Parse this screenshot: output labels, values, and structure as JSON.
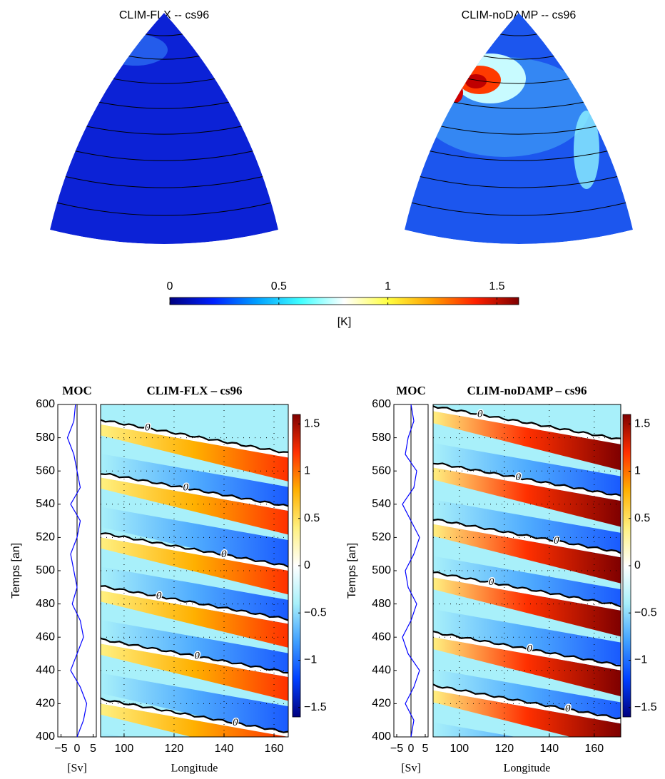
{
  "chart_data": [
    {
      "type": "map",
      "title": "CLIM-FLX  --  cs96"
    },
    {
      "type": "map",
      "title": "CLIM-noDAMP  --  cs96"
    },
    {
      "type": "colorbar",
      "label": "[K]",
      "lim": [
        0,
        1.6
      ],
      "ticks": [
        0,
        0.5,
        1,
        1.5
      ],
      "colormap": [
        "#00007f",
        "#0020ff",
        "#00a0ff",
        "#40ffff",
        "#ffffff",
        "#ffff40",
        "#ffa000",
        "#ff2000",
        "#7f0000"
      ]
    },
    {
      "type": "line",
      "title": "MOC",
      "xlabel": "[Sv]",
      "ylabel": "Temps [an]",
      "xlim": [
        -6,
        6
      ],
      "xticks": [
        {
          "value": -5,
          "label": "−5"
        },
        0,
        5
      ],
      "ylim": [
        400,
        600
      ],
      "yticks": [
        400,
        420,
        440,
        460,
        480,
        500,
        520,
        540,
        560,
        580,
        600
      ],
      "y": [
        400,
        410,
        420,
        430,
        440,
        450,
        460,
        470,
        480,
        490,
        500,
        510,
        520,
        530,
        540,
        550,
        560,
        570,
        580,
        590,
        600
      ],
      "values": [
        0,
        2,
        3,
        1,
        -2,
        0,
        2,
        1,
        -1.5,
        0,
        -1,
        -2,
        0,
        1,
        -2,
        1,
        0,
        -1,
        -3,
        -1,
        -0.5
      ],
      "color": "#0000ff",
      "zero_line": true
    },
    {
      "type": "heatmap",
      "title": "CLIM-FLX – cs96",
      "xlabel": "Longitude",
      "xlim": [
        90.6,
        165.7
      ],
      "xticks": [
        100,
        120,
        140,
        160
      ],
      "ylim": [
        400,
        600
      ],
      "yticks": [
        400,
        420,
        440,
        460,
        480,
        500,
        520,
        540,
        560,
        580,
        600
      ],
      "grid": true,
      "contour_label": "0",
      "colorbar": {
        "lim": [
          -1.6,
          1.6
        ],
        "ticks": [
          {
            "value": -1.5,
            "label": "−1.5"
          },
          {
            "value": -1,
            "label": "−1"
          },
          {
            "value": -0.5,
            "label": "−0.5"
          },
          0,
          0.5,
          1,
          1.5
        ],
        "colormap": [
          "#00007f",
          "#0040ff",
          "#40a0ff",
          "#a8f0fa",
          "#ffffff",
          "#fff080",
          "#ffb000",
          "#ff3000",
          "#7f0000"
        ]
      }
    },
    {
      "type": "line",
      "title": "MOC",
      "xlabel": "[Sv]",
      "ylabel": "Temps [an]",
      "xlim": [
        -6,
        6
      ],
      "xticks": [
        {
          "value": -5,
          "label": "−5"
        },
        0,
        5
      ],
      "ylim": [
        400,
        600
      ],
      "yticks": [
        400,
        420,
        440,
        460,
        480,
        500,
        520,
        540,
        560,
        580,
        600
      ],
      "y": [
        400,
        410,
        420,
        430,
        440,
        450,
        460,
        470,
        480,
        490,
        500,
        510,
        520,
        530,
        540,
        550,
        560,
        570,
        580,
        590,
        600
      ],
      "values": [
        0,
        1,
        -2,
        1,
        3,
        -1,
        -3,
        0,
        2,
        -1,
        -2,
        1,
        3,
        0,
        -3,
        1,
        2,
        -2,
        -1,
        1,
        0
      ],
      "color": "#0000ff",
      "zero_line": true
    },
    {
      "type": "heatmap",
      "title": "CLIM-noDAMP – cs96",
      "xlabel": "Longitude",
      "xlim": [
        88.3,
        171.8
      ],
      "xticks": [
        100,
        120,
        140,
        160
      ],
      "ylim": [
        400,
        600
      ],
      "yticks": [
        400,
        420,
        440,
        460,
        480,
        500,
        520,
        540,
        560,
        580,
        600
      ],
      "grid": true,
      "contour_label": "0",
      "colorbar": {
        "lim": [
          -1.6,
          1.6
        ],
        "ticks": [
          {
            "value": -1.5,
            "label": "−1.5"
          },
          {
            "value": -1,
            "label": "−1"
          },
          {
            "value": -0.5,
            "label": "−0.5"
          },
          0,
          0.5,
          1,
          1.5
        ],
        "colormap": [
          "#00007f",
          "#0040ff",
          "#40a0ff",
          "#a8f0fa",
          "#ffffff",
          "#fff080",
          "#ffb000",
          "#ff3000",
          "#7f0000"
        ]
      }
    }
  ]
}
